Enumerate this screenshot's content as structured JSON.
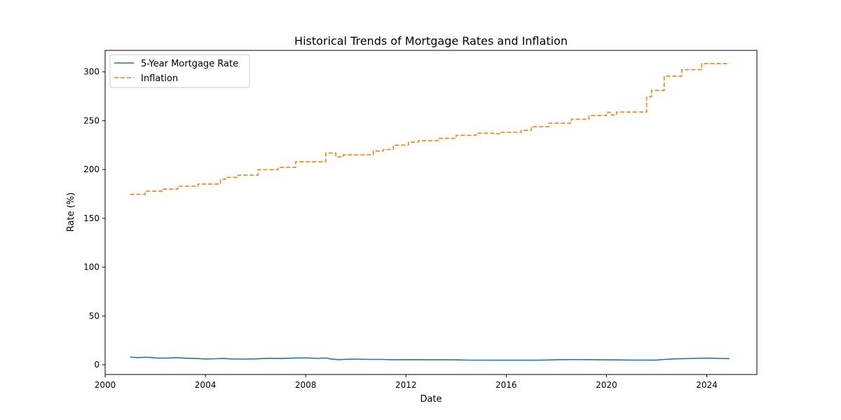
{
  "chart_data": {
    "type": "line",
    "title": "Historical Trends of Mortgage Rates and Inflation",
    "xlabel": "Date",
    "ylabel": "Rate (%)",
    "xlim": [
      2000,
      2026
    ],
    "ylim": [
      -10,
      322
    ],
    "xticks": [
      2000,
      2004,
      2008,
      2012,
      2016,
      2020,
      2024
    ],
    "yticks": [
      0,
      50,
      100,
      150,
      200,
      250,
      300
    ],
    "grid": false,
    "legend_position": "top-left",
    "series": [
      {
        "name": "5-Year Mortgage Rate",
        "color": "#1f77b4",
        "style": "solid",
        "points": [
          [
            2001.0,
            7.9
          ],
          [
            2001.3,
            7.3
          ],
          [
            2001.6,
            7.7
          ],
          [
            2001.8,
            7.5
          ],
          [
            2002.0,
            6.9
          ],
          [
            2002.5,
            6.8
          ],
          [
            2002.8,
            7.3
          ],
          [
            2003.2,
            6.7
          ],
          [
            2003.6,
            6.4
          ],
          [
            2004.0,
            5.9
          ],
          [
            2004.4,
            6.1
          ],
          [
            2004.7,
            6.4
          ],
          [
            2005.0,
            6.0
          ],
          [
            2005.5,
            5.8
          ],
          [
            2006.0,
            6.0
          ],
          [
            2006.5,
            6.6
          ],
          [
            2007.0,
            6.4
          ],
          [
            2007.5,
            6.8
          ],
          [
            2008.0,
            7.0
          ],
          [
            2008.5,
            6.5
          ],
          [
            2008.8,
            6.9
          ],
          [
            2009.0,
            5.9
          ],
          [
            2009.3,
            5.2
          ],
          [
            2009.7,
            5.6
          ],
          [
            2010.0,
            5.8
          ],
          [
            2010.5,
            5.4
          ],
          [
            2011.0,
            5.4
          ],
          [
            2011.5,
            5.1
          ],
          [
            2012.0,
            5.2
          ],
          [
            2013.0,
            5.1
          ],
          [
            2013.5,
            5.1
          ],
          [
            2014.0,
            5.0
          ],
          [
            2014.5,
            4.7
          ],
          [
            2015.0,
            4.7
          ],
          [
            2016.0,
            4.6
          ],
          [
            2017.0,
            4.6
          ],
          [
            2017.5,
            4.8
          ],
          [
            2018.0,
            5.1
          ],
          [
            2018.5,
            5.3
          ],
          [
            2019.0,
            5.3
          ],
          [
            2020.0,
            5.0
          ],
          [
            2020.5,
            4.9
          ],
          [
            2021.0,
            4.8
          ],
          [
            2022.0,
            4.8
          ],
          [
            2022.3,
            5.4
          ],
          [
            2022.7,
            6.0
          ],
          [
            2023.0,
            6.2
          ],
          [
            2023.5,
            6.5
          ],
          [
            2024.0,
            6.8
          ],
          [
            2024.5,
            6.5
          ],
          [
            2024.9,
            6.3
          ]
        ]
      },
      {
        "name": "Inflation",
        "color": "#ff7f0e",
        "style": "dashed",
        "steps": [
          [
            2001.0,
            174.5
          ],
          [
            2001.6,
            177.8
          ],
          [
            2002.3,
            179.9
          ],
          [
            2002.9,
            182.9
          ],
          [
            2003.7,
            185.1
          ],
          [
            2004.6,
            189.9
          ],
          [
            2004.8,
            191.9
          ],
          [
            2005.3,
            194.2
          ],
          [
            2006.1,
            199.9
          ],
          [
            2006.9,
            202.1
          ],
          [
            2007.6,
            207.9
          ],
          [
            2008.8,
            216.9
          ],
          [
            2009.2,
            212.9
          ],
          [
            2009.5,
            215.0
          ],
          [
            2010.7,
            218.9
          ],
          [
            2011.1,
            220.5
          ],
          [
            2011.5,
            224.9
          ],
          [
            2012.1,
            228.0
          ],
          [
            2012.5,
            229.6
          ],
          [
            2013.3,
            231.9
          ],
          [
            2014.0,
            235.0
          ],
          [
            2014.8,
            237.2
          ],
          [
            2015.5,
            236.5
          ],
          [
            2015.8,
            238.1
          ],
          [
            2016.6,
            240.2
          ],
          [
            2017.0,
            243.9
          ],
          [
            2017.7,
            247.5
          ],
          [
            2018.6,
            251.5
          ],
          [
            2019.3,
            255.4
          ],
          [
            2020.0,
            258.6
          ],
          [
            2020.2,
            255.9
          ],
          [
            2020.4,
            258.8
          ],
          [
            2021.6,
            274.6
          ],
          [
            2021.8,
            281.0
          ],
          [
            2022.3,
            295.6
          ],
          [
            2023.0,
            302.2
          ],
          [
            2023.8,
            308.5
          ],
          [
            2024.9,
            308.5
          ]
        ]
      }
    ]
  }
}
